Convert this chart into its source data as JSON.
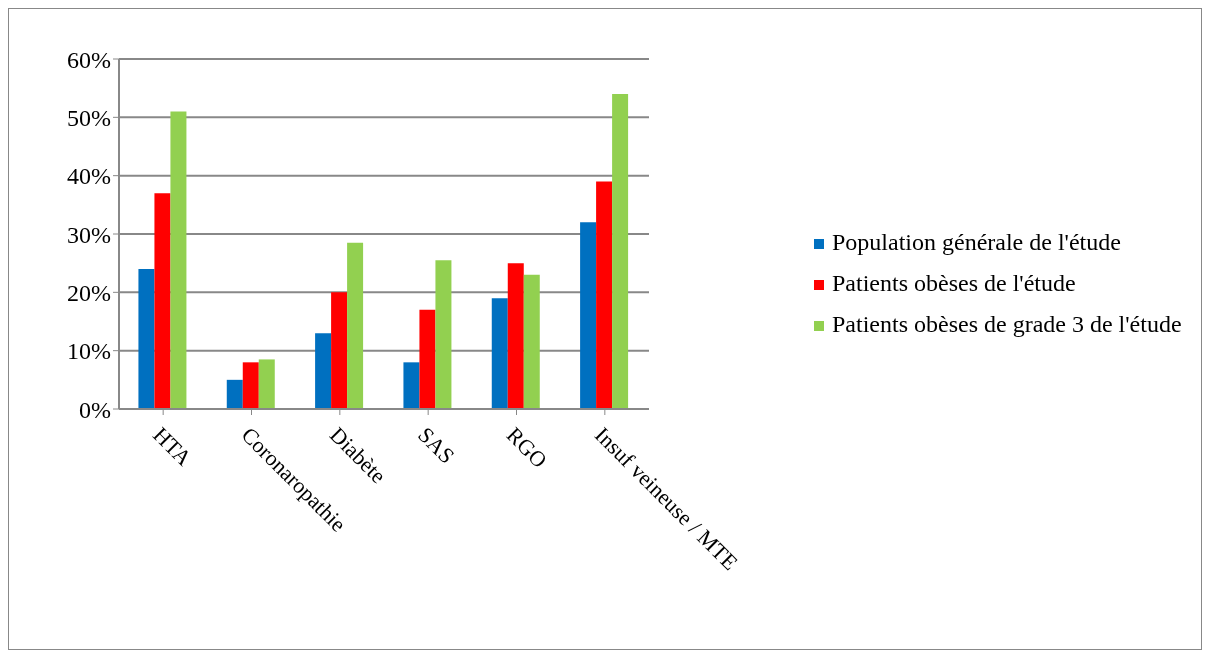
{
  "chart_data": {
    "type": "bar",
    "categories": [
      "HTA",
      "Coronaropathie",
      "Diabète",
      "SAS",
      "RGO",
      "Insuf veineuse / MTE"
    ],
    "series": [
      {
        "name": "Population générale de l'étude",
        "color": "#0070c0",
        "values": [
          24,
          5,
          13,
          8,
          19,
          32
        ]
      },
      {
        "name": "Patients obèses de l'étude",
        "color": "#ff0000",
        "values": [
          37,
          8,
          20,
          17,
          25,
          39
        ]
      },
      {
        "name": "Patients obèses de grade 3 de l'étude",
        "color": "#92d050",
        "values": [
          51,
          8.5,
          28.5,
          25.5,
          23,
          54
        ]
      }
    ],
    "ylim": [
      0,
      60
    ],
    "yticks": [
      {
        "value": 0,
        "label": "0%"
      },
      {
        "value": 10,
        "label": "10%"
      },
      {
        "value": 20,
        "label": "20%"
      },
      {
        "value": 30,
        "label": "30%"
      },
      {
        "value": 40,
        "label": "40%"
      },
      {
        "value": 50,
        "label": "50%"
      },
      {
        "value": 60,
        "label": "60%"
      }
    ],
    "grid": "y",
    "legend": "right"
  }
}
